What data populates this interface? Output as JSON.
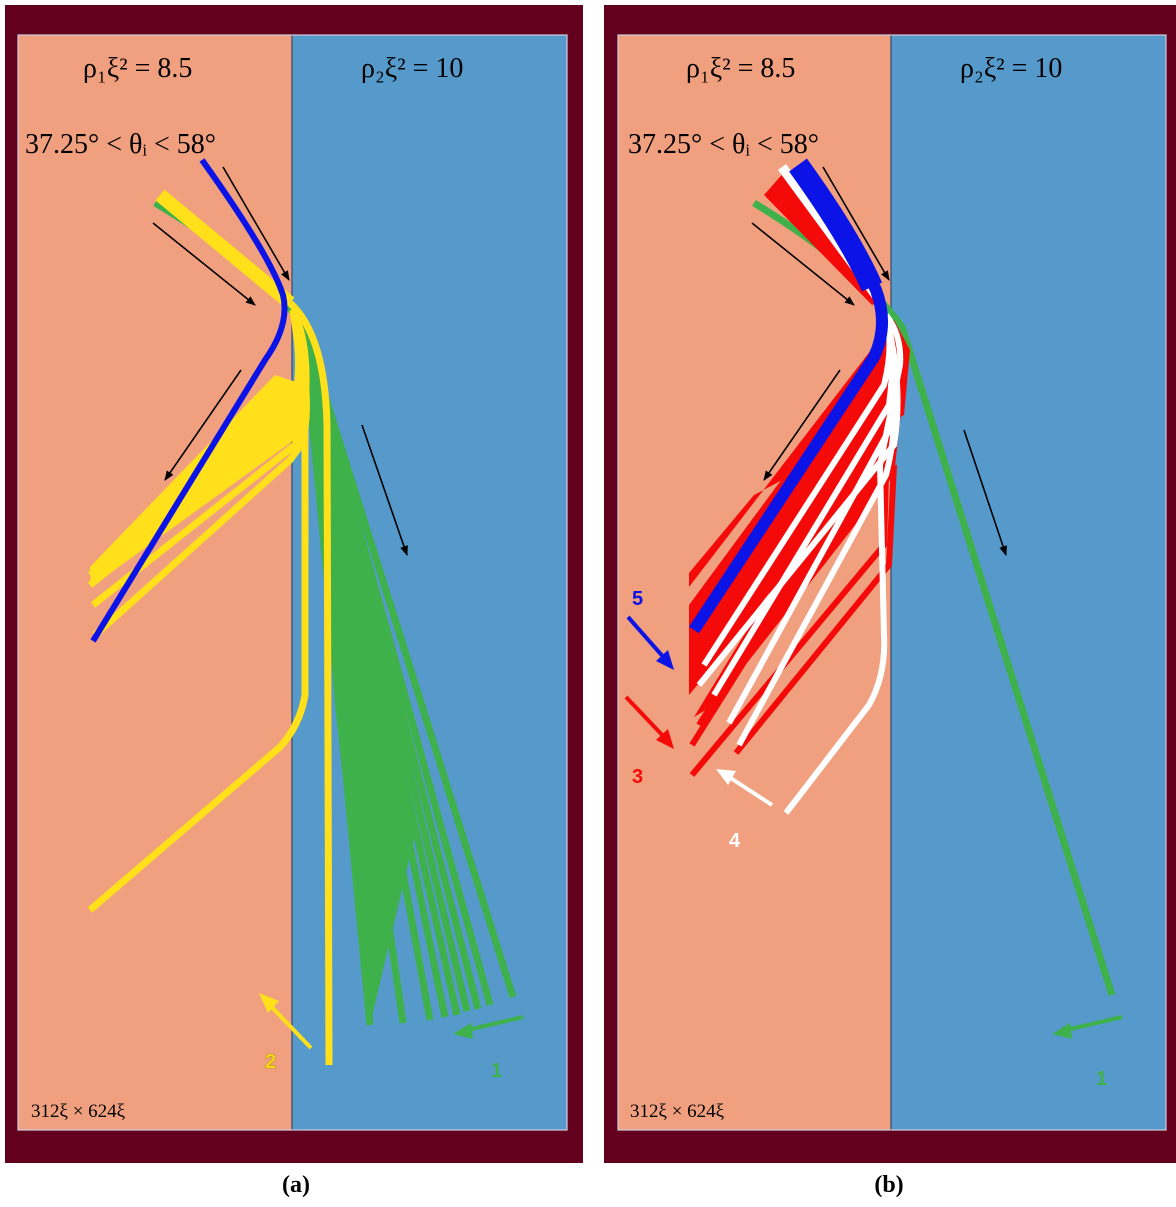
{
  "colors": {
    "frame": "#63001d",
    "medium1": "#f0a07e",
    "medium2": "#559acb",
    "yellow": "#ffe01a",
    "green": "#3fb14a",
    "blue": "#0c13e6",
    "red": "#f50a0a",
    "white": "#ffffff",
    "arrow_black": "#000000"
  },
  "panels": [
    {
      "caption": "(a)",
      "label_left": "ρ₁ξ² = 8.5",
      "label_right": "ρ₂ξ² = 10",
      "angle_range": "37.25° < θᵢ < 58°",
      "size_label": "312ξ × 624ξ",
      "markers": [
        "2",
        "1"
      ]
    },
    {
      "caption": "(b)",
      "label_left": "ρ₁ξ² = 8.5",
      "label_right": "ρ₂ξ² = 10",
      "angle_range": "37.25° < θᵢ < 58°",
      "size_label": "312ξ × 624ξ",
      "markers": [
        "5",
        "3",
        "4",
        "1"
      ]
    }
  ]
}
